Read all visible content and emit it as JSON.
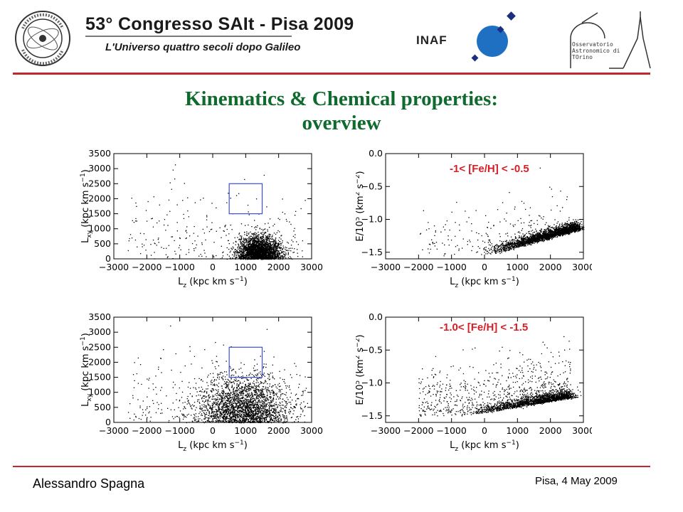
{
  "header": {
    "conference_title": "53° Congresso SAIt - Pisa 2009",
    "conference_subtitle": "L'Universo quattro secoli dopo Galileo",
    "sait_logo_text": "Società Astronomica Italiana · 1871 Società degli Spettroscopisti",
    "inaf_label": "INAF",
    "observatory_lines": [
      "Osservatorio",
      "Astronomico di",
      "TOrino"
    ]
  },
  "title": {
    "line1": "Kinematics & Chemical properties:",
    "line2": "overview"
  },
  "footer": {
    "author": "Alessandro Spagna",
    "date": "Pisa, 4 May 2009"
  },
  "colors": {
    "accent_rule": "#c0272d",
    "title_green": "#0f6a2d",
    "metal_label_red": "#d61f26",
    "box_blue": "#3a4fd6"
  },
  "chart_data": [
    {
      "type": "scatter",
      "panel": "top-left",
      "xlabel": "L_z (kpc km s^-1)",
      "ylabel": "L_xy (kpc km s^-1)",
      "xlim": [
        -3000,
        3000
      ],
      "ylim": [
        0,
        3500
      ],
      "xticks": [
        -3000,
        -2000,
        -1000,
        0,
        1000,
        2000,
        3000
      ],
      "yticks": [
        0,
        500,
        1000,
        1500,
        2000,
        2500,
        3000,
        3500
      ],
      "box": {
        "x": [
          500,
          1500
        ],
        "y": [
          1500,
          2500
        ]
      },
      "distribution": {
        "center": [
          1400,
          250
        ],
        "spread": [
          550,
          260
        ],
        "n_dense": 2600,
        "n_halo": 260
      }
    },
    {
      "type": "scatter",
      "panel": "top-right",
      "annotation": "-1< [Fe/H] < -0.5",
      "xlabel": "L_z (kpc km s^-1)",
      "ylabel": "E/10^5 (km^2 s^-2)",
      "xlim": [
        -3000,
        3000
      ],
      "ylim": [
        -1.6,
        0.0
      ],
      "xticks": [
        -3000,
        -2000,
        -1000,
        0,
        1000,
        2000,
        3000
      ],
      "yticks": [
        -1.5,
        -1.0,
        -0.5,
        0.0
      ],
      "distribution": {
        "ridge_from": [
          0,
          -1.55
        ],
        "ridge_to": [
          2800,
          -1.15
        ],
        "n_dense": 2600,
        "n_halo": 200
      }
    },
    {
      "type": "scatter",
      "panel": "bottom-left",
      "xlabel": "L_z (kpc km s^-1)",
      "ylabel": "L_xy (kpc km s^-1)",
      "xlim": [
        -3000,
        3000
      ],
      "ylim": [
        0,
        3500
      ],
      "xticks": [
        -3000,
        -2000,
        -1000,
        0,
        1000,
        2000,
        3000
      ],
      "yticks": [
        0,
        500,
        1000,
        1500,
        2000,
        2500,
        3000,
        3500
      ],
      "box": {
        "x": [
          500,
          1500
        ],
        "y": [
          1500,
          2500
        ]
      },
      "distribution": {
        "center": [
          900,
          500
        ],
        "spread": [
          1100,
          520
        ],
        "n_dense": 2400,
        "n_halo": 320
      }
    },
    {
      "type": "scatter",
      "panel": "bottom-right",
      "annotation": "-1.0< [Fe/H] < -1.5",
      "xlabel": "L_z (kpc km s^-1)",
      "ylabel": "E/10^5 (km^2 s^-2)",
      "xlim": [
        -3000,
        3000
      ],
      "ylim": [
        -1.6,
        0.0
      ],
      "xticks": [
        -3000,
        -2000,
        -1000,
        0,
        1000,
        2000,
        3000
      ],
      "yticks": [
        -1.5,
        -1.0,
        -0.5,
        0.0
      ],
      "distribution": {
        "ridge_from": [
          -600,
          -1.5
        ],
        "ridge_to": [
          2600,
          -1.22
        ],
        "n_dense": 1800,
        "n_halo": 700
      }
    }
  ]
}
